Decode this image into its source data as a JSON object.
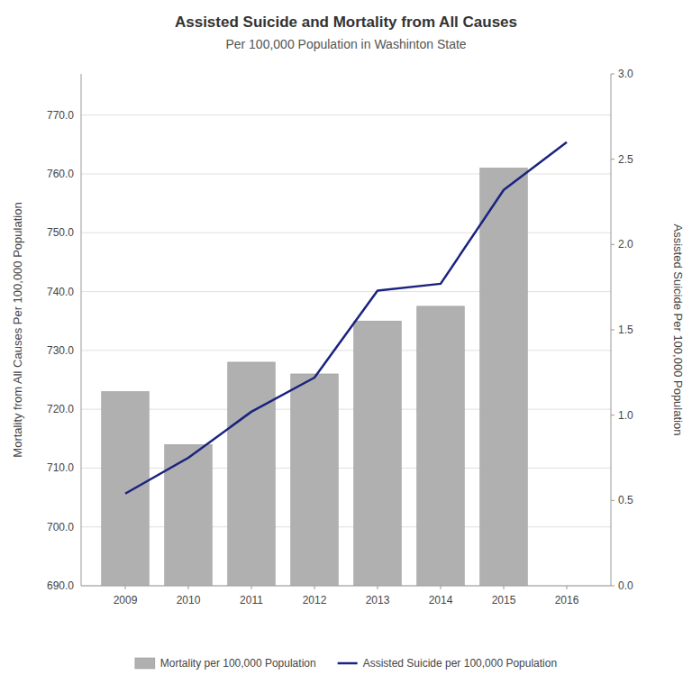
{
  "chart_data": {
    "type": "bar",
    "title": "Assisted Suicide and Mortality from All Causes",
    "subtitle": "Per 100,000 Population in Washinton State",
    "ylabel": "Mortality from All Causes Per 100,000 Population",
    "y2label": "Assisted Suicide Per 100,000 Population",
    "x": [
      2009,
      2010,
      2011,
      2012,
      2013,
      2014,
      2015,
      2016
    ],
    "xlim": [
      2008.3,
      2016.7
    ],
    "xticks": [
      2009,
      2010,
      2011,
      2012,
      2013,
      2014,
      2015,
      2016
    ],
    "ylim": [
      690.0,
      777.0
    ],
    "yticks": [
      {
        "value": 690.0,
        "label": "690.0"
      },
      {
        "value": 700.0,
        "label": "700.0"
      },
      {
        "value": 710.0,
        "label": "710.0"
      },
      {
        "value": 720.0,
        "label": "720.0"
      },
      {
        "value": 730.0,
        "label": "730.0"
      },
      {
        "value": 740.0,
        "label": "740.0"
      },
      {
        "value": 750.0,
        "label": "750.0"
      },
      {
        "value": 760.0,
        "label": "760.0"
      },
      {
        "value": 770.0,
        "label": "770.0"
      }
    ],
    "y2lim": [
      0.0,
      3.0
    ],
    "y2ticks": [
      {
        "value": 0.0,
        "label": "0.0"
      },
      0.5,
      {
        "value": 1.0,
        "label": "1.0"
      },
      1.5,
      {
        "value": 2.0,
        "label": "2.0"
      },
      2.5,
      {
        "value": 3.0,
        "label": "3.0"
      }
    ],
    "grid": true,
    "legend": "bottom",
    "series": [
      {
        "name": "Mortality per 100,000 Population",
        "type": "bar",
        "color": "#b0b0b0",
        "values": [
          723.0,
          714.0,
          728.0,
          726.0,
          735.0,
          737.5,
          761.0,
          null
        ]
      },
      {
        "name": "Assisted Suicide per 100,000 Population",
        "type": "line",
        "color": "#1a237e",
        "axis": "y2",
        "values": [
          0.54,
          0.75,
          1.02,
          1.22,
          1.73,
          1.77,
          2.32,
          2.6
        ]
      }
    ]
  }
}
